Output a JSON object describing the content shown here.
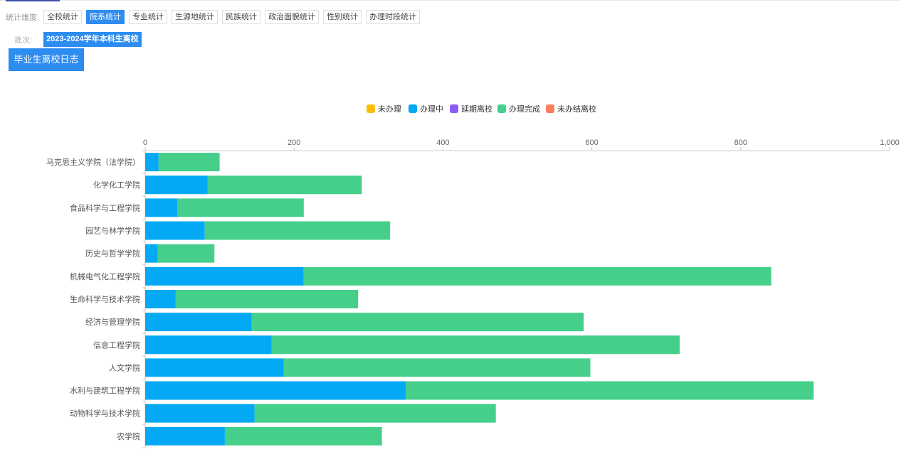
{
  "filters": {
    "label": "统计维度:",
    "options": [
      "全校统计",
      "院系统计",
      "专业统计",
      "生源地统计",
      "民族统计",
      "政治面貌统计",
      "性别统计",
      "办理时段统计"
    ],
    "active_index": 1
  },
  "batch": {
    "label": "批次:",
    "value": "2023-2024学年本科生离校"
  },
  "log_button": "毕业生离校日志",
  "chart_data": {
    "type": "bar",
    "orientation": "horizontal",
    "stacked": true,
    "legend_position": "top",
    "legend": [
      {
        "name": "未办理",
        "color": "#fbbd08"
      },
      {
        "name": "办理中",
        "color": "#03a9f4"
      },
      {
        "name": "延期离校",
        "color": "#8b5cf6"
      },
      {
        "name": "办理完成",
        "color": "#45cf8b"
      },
      {
        "name": "未办结离校",
        "color": "#fa7e5a"
      }
    ],
    "categories": [
      "马克思主义学院（法学院）",
      "化学化工学院",
      "食品科学与工程学院",
      "园艺与林学学院",
      "历史与哲学学院",
      "机械电气化工程学院",
      "生命科学与技术学院",
      "经济与管理学院",
      "信息工程学院",
      "人文学院",
      "水利与建筑工程学院",
      "动物科学与技术学院",
      "农学院"
    ],
    "xlim": [
      0,
      1000
    ],
    "x_ticks": [
      "0",
      "200",
      "400",
      "600",
      "800",
      "1,000"
    ],
    "series": [
      {
        "name": "未办理",
        "values": [
          0,
          0,
          0,
          0,
          0,
          0,
          0,
          0,
          0,
          0,
          0,
          0,
          0
        ]
      },
      {
        "name": "办理中",
        "values": [
          18,
          84,
          43,
          80,
          17,
          213,
          41,
          143,
          170,
          186,
          350,
          147,
          107
        ]
      },
      {
        "name": "延期离校",
        "values": [
          0,
          0,
          0,
          0,
          0,
          0,
          0,
          0,
          0,
          0,
          0,
          0,
          0
        ]
      },
      {
        "name": "办理完成",
        "values": [
          82,
          207,
          170,
          249,
          76,
          628,
          245,
          446,
          548,
          412,
          548,
          324,
          211
        ]
      },
      {
        "name": "未办结离校",
        "values": [
          0,
          0,
          0,
          0,
          0,
          0,
          0,
          0,
          0,
          0,
          0,
          0,
          0
        ]
      }
    ]
  }
}
